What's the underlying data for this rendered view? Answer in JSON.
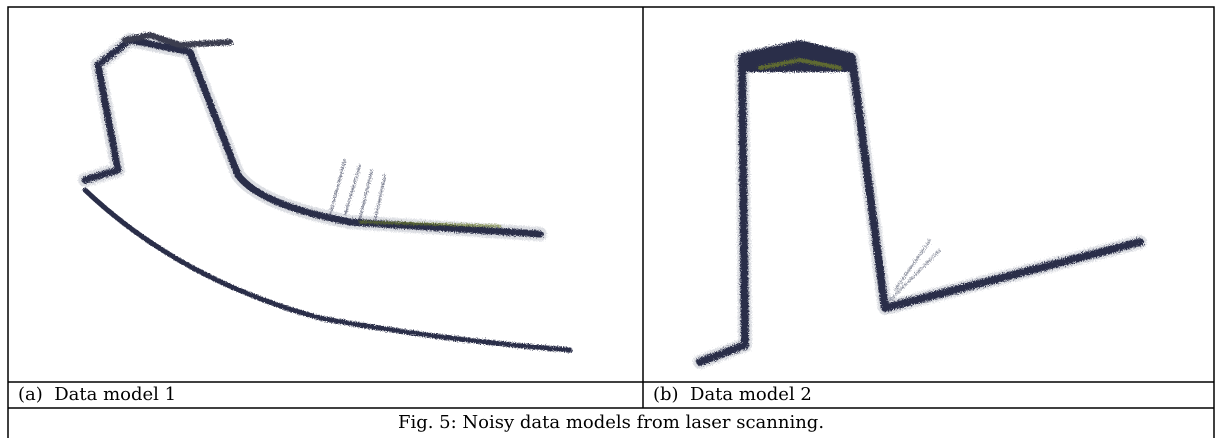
{
  "figure": {
    "panels": [
      {
        "label": "(a)  Data model 1"
      },
      {
        "label": "(b)  Data model 2"
      }
    ],
    "caption": "Fig. 5: Noisy data models from laser scanning."
  }
}
